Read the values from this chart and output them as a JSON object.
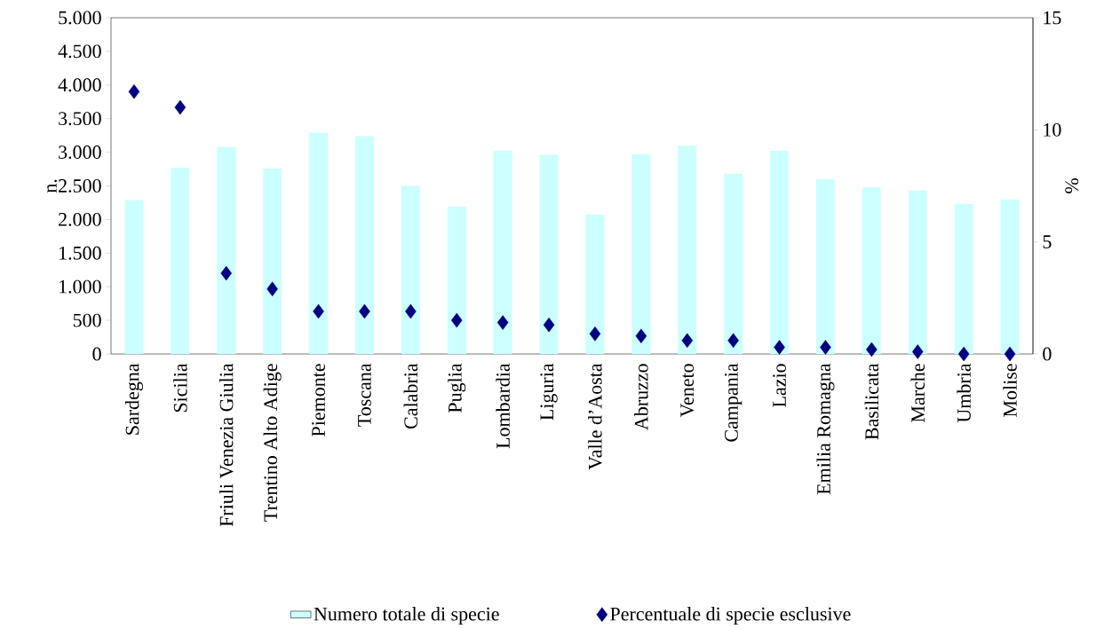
{
  "chart_data": {
    "type": "bar",
    "categories": [
      "Sardegna",
      "Sicilia",
      "Friuli Venezia Giulia",
      "Trentino Alto Adige",
      "Piemonte",
      "Toscana",
      "Calabria",
      "Puglia",
      "Lombardia",
      "Liguria",
      "Valle d’Aosta",
      "Abruzzo",
      "Veneto",
      "Campania",
      "Lazio",
      "Emilia Romagna",
      "Basilicata",
      "Marche",
      "Umbria",
      "Molise"
    ],
    "series": [
      {
        "name": "Numero totale di specie",
        "color": "#ccffff",
        "values": [
          2290,
          2770,
          3080,
          2760,
          3290,
          3240,
          2500,
          2190,
          3020,
          2960,
          2070,
          2970,
          3100,
          2680,
          3020,
          2600,
          2480,
          2430,
          2230,
          2300
        ]
      },
      {
        "name": "Percentuale di specie esclusive",
        "type": "scatter",
        "axis": "y2",
        "color": "#000080",
        "values": [
          11.7,
          11.0,
          3.6,
          2.9,
          1.9,
          1.9,
          1.9,
          1.5,
          1.4,
          1.3,
          0.9,
          0.8,
          0.6,
          0.6,
          0.3,
          0.3,
          0.2,
          0.1,
          0,
          0
        ]
      }
    ],
    "ylabel": "n.",
    "y2label": "%",
    "ylim": [
      0,
      5000
    ],
    "yticks": [
      0,
      500,
      {
        "value": 1000,
        "label": "1.000"
      },
      {
        "value": 1500,
        "label": "1.500"
      },
      {
        "value": 2000,
        "label": "2.000"
      },
      {
        "value": 2500,
        "label": "2.500"
      },
      {
        "value": 3000,
        "label": "3.000"
      },
      {
        "value": 3500,
        "label": "3.500"
      },
      {
        "value": 4000,
        "label": "4.000"
      },
      {
        "value": 4500,
        "label": "4.500"
      },
      {
        "value": 5000,
        "label": "5.000"
      }
    ],
    "y2lim": [
      0,
      15
    ],
    "y2ticks": [
      0,
      5,
      10,
      15
    ],
    "marker": "diamond",
    "legend": "bottom",
    "grid": false
  }
}
